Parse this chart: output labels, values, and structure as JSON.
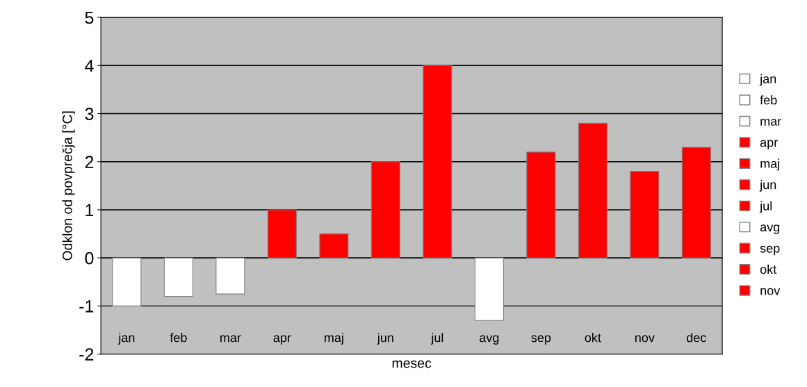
{
  "chart_data": {
    "type": "bar",
    "xlabel": "mesec",
    "ylabel": "Odklon od povprečja [°C]",
    "categories": [
      "jan",
      "feb",
      "mar",
      "apr",
      "maj",
      "jun",
      "jul",
      "avg",
      "sep",
      "okt",
      "nov",
      "dec"
    ],
    "series": [
      {
        "name": "jan",
        "color": "#ffffff",
        "values": [
          -1.0,
          null,
          null,
          null,
          null,
          null,
          null,
          null,
          null,
          null,
          null,
          null
        ]
      },
      {
        "name": "feb",
        "color": "#ffffff",
        "values": [
          null,
          -0.8,
          null,
          null,
          null,
          null,
          null,
          null,
          null,
          null,
          null,
          null
        ]
      },
      {
        "name": "mar",
        "color": "#ffffff",
        "values": [
          null,
          null,
          -0.75,
          null,
          null,
          null,
          null,
          null,
          null,
          null,
          null,
          null
        ]
      },
      {
        "name": "apr",
        "color": "#ff0000",
        "values": [
          null,
          null,
          null,
          1.0,
          null,
          null,
          null,
          null,
          null,
          null,
          null,
          null
        ]
      },
      {
        "name": "maj",
        "color": "#ff0000",
        "values": [
          null,
          null,
          null,
          null,
          0.5,
          null,
          null,
          null,
          null,
          null,
          null,
          null
        ]
      },
      {
        "name": "jun",
        "color": "#ff0000",
        "values": [
          null,
          null,
          null,
          null,
          null,
          2.0,
          null,
          null,
          null,
          null,
          null,
          null
        ]
      },
      {
        "name": "jul",
        "color": "#ff0000",
        "values": [
          null,
          null,
          null,
          null,
          null,
          null,
          4.0,
          null,
          null,
          null,
          null,
          null
        ]
      },
      {
        "name": "avg",
        "color": "#ffffff",
        "values": [
          null,
          null,
          null,
          null,
          null,
          null,
          null,
          -1.3,
          null,
          null,
          null,
          null
        ]
      },
      {
        "name": "sep",
        "color": "#ff0000",
        "values": [
          null,
          null,
          null,
          null,
          null,
          null,
          null,
          null,
          2.2,
          null,
          null,
          null
        ]
      },
      {
        "name": "okt",
        "color": "#ff0000",
        "values": [
          null,
          null,
          null,
          null,
          null,
          null,
          null,
          null,
          null,
          2.8,
          null,
          null
        ]
      },
      {
        "name": "nov",
        "color": "#ff0000",
        "values": [
          null,
          null,
          null,
          null,
          null,
          null,
          null,
          null,
          null,
          null,
          1.8,
          null
        ]
      },
      {
        "color": "#ff0000",
        "values": [
          null,
          null,
          null,
          null,
          null,
          null,
          null,
          null,
          null,
          null,
          null,
          2.3
        ]
      }
    ],
    "ylim": [
      -2,
      5
    ],
    "yticks": [
      -2,
      -1,
      0,
      1,
      2,
      3,
      4,
      5
    ],
    "grid": "y",
    "legend": "right"
  }
}
